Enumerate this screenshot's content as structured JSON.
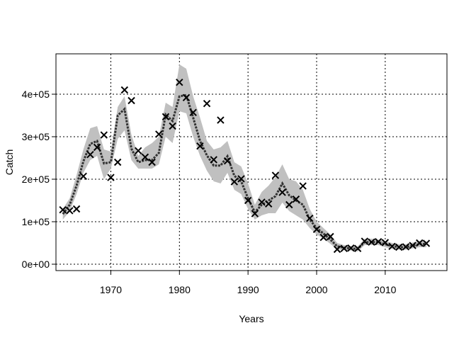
{
  "chart_data": {
    "type": "line",
    "title": "",
    "xlabel": "Years",
    "ylabel": "Catch",
    "xlim": [
      1962,
      2019
    ],
    "ylim": [
      -15000,
      495000
    ],
    "grid": true,
    "x_ticks": [
      1970,
      1980,
      1990,
      2000,
      2010
    ],
    "x_tick_labels": [
      "1970",
      "1980",
      "1990",
      "2000",
      "2010"
    ],
    "y_ticks": [
      0,
      100000,
      200000,
      300000,
      400000
    ],
    "y_tick_labels": [
      "0e+00",
      "1e+05",
      "2e+05",
      "3e+05",
      "4e+05"
    ],
    "colors": {
      "band": "#c0c0c0",
      "line": "#333333",
      "points": "#000000",
      "grid": "#000000"
    },
    "series": [
      {
        "type": "area",
        "x": [
          1963,
          1964,
          1965,
          1966,
          1967,
          1968,
          1969,
          1970,
          1971,
          1972,
          1973,
          1974,
          1975,
          1976,
          1977,
          1978,
          1979,
          1980,
          1981,
          1982,
          1983,
          1984,
          1985,
          1986,
          1987,
          1988,
          1989,
          1990,
          1991,
          1992,
          1993,
          1994,
          1995,
          1996,
          1997,
          1998,
          1999,
          2000,
          2001,
          2002,
          2003,
          2004,
          2005,
          2006,
          2007,
          2008,
          2009,
          2010,
          2011,
          2012,
          2013,
          2014,
          2015,
          2016
        ],
        "lower": [
          105000,
          125000,
          165000,
          215000,
          245000,
          255000,
          200000,
          225000,
          295000,
          315000,
          245000,
          225000,
          225000,
          225000,
          235000,
          300000,
          285000,
          360000,
          355000,
          300000,
          255000,
          220000,
          195000,
          190000,
          215000,
          175000,
          165000,
          130000,
          105000,
          115000,
          120000,
          120000,
          145000,
          125000,
          115000,
          105000,
          85000,
          70000,
          60000,
          48000,
          35000,
          33000,
          32000,
          30000,
          45000,
          45000,
          45000,
          40000,
          36000,
          34000,
          34000,
          37000,
          40000,
          40000
        ],
        "upper": [
          130000,
          155000,
          210000,
          270000,
          320000,
          325000,
          270000,
          265000,
          370000,
          395000,
          305000,
          255000,
          275000,
          285000,
          300000,
          380000,
          370000,
          470000,
          460000,
          395000,
          345000,
          290000,
          270000,
          275000,
          290000,
          240000,
          230000,
          190000,
          140000,
          170000,
          185000,
          205000,
          235000,
          200000,
          195000,
          175000,
          130000,
          100000,
          85000,
          70000,
          50000,
          45000,
          43000,
          42000,
          60000,
          60000,
          58000,
          55000,
          50000,
          47000,
          47000,
          51000,
          55000,
          55000
        ]
      },
      {
        "type": "line",
        "x": [
          1963,
          1964,
          1965,
          1966,
          1967,
          1968,
          1969,
          1970,
          1971,
          1972,
          1973,
          1974,
          1975,
          1976,
          1977,
          1978,
          1979,
          1980,
          1981,
          1982,
          1983,
          1984,
          1985,
          1986,
          1987,
          1988,
          1989,
          1990,
          1991,
          1992,
          1993,
          1994,
          1995,
          1996,
          1997,
          1998,
          1999,
          2000,
          2001,
          2002,
          2003,
          2004,
          2005,
          2006,
          2007,
          2008,
          2009,
          2010,
          2011,
          2012,
          2013,
          2014,
          2015,
          2016
        ],
        "values": [
          118000,
          140000,
          185000,
          242000,
          283000,
          290000,
          237000,
          240000,
          350000,
          365000,
          272000,
          240000,
          245000,
          245000,
          262000,
          352000,
          337000,
          395000,
          398000,
          345000,
          290000,
          256000,
          232000,
          232000,
          254000,
          208000,
          195000,
          155000,
          122000,
          140000,
          150000,
          160000,
          190000,
          162000,
          150000,
          140000,
          105000,
          85000,
          72000,
          58000,
          42000,
          39000,
          37000,
          36000,
          52000,
          52000,
          52000,
          47000,
          43000,
          40000,
          40000,
          44000,
          47000,
          48000
        ]
      },
      {
        "type": "scatter",
        "x": [
          1963,
          1964,
          1965,
          1966,
          1967,
          1968,
          1969,
          1970,
          1971,
          1972,
          1973,
          1974,
          1975,
          1976,
          1977,
          1978,
          1979,
          1980,
          1981,
          1982,
          1983,
          1984,
          1985,
          1986,
          1987,
          1988,
          1989,
          1990,
          1991,
          1992,
          1993,
          1994,
          1995,
          1996,
          1997,
          1998,
          1999,
          2000,
          2001,
          2002,
          2003,
          2004,
          2005,
          2006,
          2007,
          2008,
          2009,
          2010,
          2011,
          2012,
          2013,
          2014,
          2015,
          2016
        ],
        "values": [
          128000,
          126000,
          130000,
          207000,
          258000,
          275000,
          304000,
          204000,
          240000,
          410000,
          385000,
          267000,
          252000,
          240000,
          306000,
          347000,
          325000,
          428000,
          392000,
          357000,
          278000,
          378000,
          246000,
          339000,
          243000,
          194000,
          201000,
          150000,
          119000,
          146000,
          142000,
          209000,
          169000,
          140000,
          153000,
          184000,
          108000,
          82000,
          63000,
          65000,
          35000,
          37000,
          38000,
          37000,
          54000,
          52000,
          53000,
          51000,
          42000,
          40000,
          41000,
          44000,
          50000,
          49000
        ]
      }
    ]
  }
}
